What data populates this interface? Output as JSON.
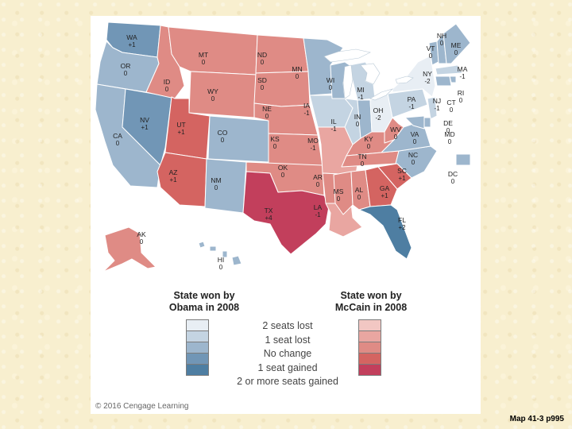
{
  "map": {
    "legend": {
      "obama_title": "State won by\nObama in 2008",
      "mccain_title": "State won by\nMcCain in 2008",
      "levels": [
        {
          "label": "2 seats lost",
          "obama_color": "#e8eef4",
          "mccain_color": "#f2c7c3"
        },
        {
          "label": "1 seat lost",
          "obama_color": "#c4d4e2",
          "mccain_color": "#e9a6a1"
        },
        {
          "label": "No change",
          "obama_color": "#9db6cd",
          "mccain_color": "#df8b85"
        },
        {
          "label": "1 seat gained",
          "obama_color": "#7196b6",
          "mccain_color": "#d46461"
        },
        {
          "label": "2 or more seats gained",
          "obama_color": "#4e7ea2",
          "mccain_color": "#c23f5c"
        }
      ]
    },
    "states": [
      {
        "abbr": "WA",
        "change": "+1",
        "winner": "obama",
        "level": 3
      },
      {
        "abbr": "OR",
        "change": "0",
        "winner": "obama",
        "level": 2
      },
      {
        "abbr": "CA",
        "change": "0",
        "winner": "obama",
        "level": 2
      },
      {
        "abbr": "NV",
        "change": "+1",
        "winner": "obama",
        "level": 3
      },
      {
        "abbr": "ID",
        "change": "0",
        "winner": "mccain",
        "level": 2
      },
      {
        "abbr": "MT",
        "change": "0",
        "winner": "mccain",
        "level": 2
      },
      {
        "abbr": "WY",
        "change": "0",
        "winner": "mccain",
        "level": 2
      },
      {
        "abbr": "UT",
        "change": "+1",
        "winner": "mccain",
        "level": 3
      },
      {
        "abbr": "AZ",
        "change": "+1",
        "winner": "mccain",
        "level": 3
      },
      {
        "abbr": "CO",
        "change": "0",
        "winner": "obama",
        "level": 2
      },
      {
        "abbr": "NM",
        "change": "0",
        "winner": "obama",
        "level": 2
      },
      {
        "abbr": "ND",
        "change": "0",
        "winner": "mccain",
        "level": 2
      },
      {
        "abbr": "SD",
        "change": "0",
        "winner": "mccain",
        "level": 2
      },
      {
        "abbr": "NE",
        "change": "0",
        "winner": "mccain",
        "level": 2
      },
      {
        "abbr": "KS",
        "change": "0",
        "winner": "mccain",
        "level": 2
      },
      {
        "abbr": "OK",
        "change": "0",
        "winner": "mccain",
        "level": 2
      },
      {
        "abbr": "TX",
        "change": "+4",
        "winner": "mccain",
        "level": 4
      },
      {
        "abbr": "MN",
        "change": "0",
        "winner": "obama",
        "level": 2
      },
      {
        "abbr": "IA",
        "change": "-1",
        "winner": "obama",
        "level": 1
      },
      {
        "abbr": "MO",
        "change": "-1",
        "winner": "mccain",
        "level": 1
      },
      {
        "abbr": "AR",
        "change": "0",
        "winner": "mccain",
        "level": 2
      },
      {
        "abbr": "LA",
        "change": "-1",
        "winner": "mccain",
        "level": 1
      },
      {
        "abbr": "WI",
        "change": "0",
        "winner": "obama",
        "level": 2
      },
      {
        "abbr": "IL",
        "change": "-1",
        "winner": "obama",
        "level": 1
      },
      {
        "abbr": "MI",
        "change": "-1",
        "winner": "obama",
        "level": 1
      },
      {
        "abbr": "IN",
        "change": "0",
        "winner": "obama",
        "level": 2
      },
      {
        "abbr": "OH",
        "change": "-2",
        "winner": "obama",
        "level": 0
      },
      {
        "abbr": "KY",
        "change": "0",
        "winner": "mccain",
        "level": 2
      },
      {
        "abbr": "TN",
        "change": "0",
        "winner": "mccain",
        "level": 2
      },
      {
        "abbr": "MS",
        "change": "0",
        "winner": "mccain",
        "level": 2
      },
      {
        "abbr": "AL",
        "change": "0",
        "winner": "mccain",
        "level": 2
      },
      {
        "abbr": "GA",
        "change": "+1",
        "winner": "mccain",
        "level": 3
      },
      {
        "abbr": "FL",
        "change": "+2",
        "winner": "obama",
        "level": 4
      },
      {
        "abbr": "SC",
        "change": "+1",
        "winner": "mccain",
        "level": 3
      },
      {
        "abbr": "NC",
        "change": "0",
        "winner": "obama",
        "level": 2
      },
      {
        "abbr": "VA",
        "change": "0",
        "winner": "obama",
        "level": 2
      },
      {
        "abbr": "WV",
        "change": "0",
        "winner": "mccain",
        "level": 2
      },
      {
        "abbr": "PA",
        "change": "-1",
        "winner": "obama",
        "level": 1
      },
      {
        "abbr": "NY",
        "change": "-2",
        "winner": "obama",
        "level": 0
      },
      {
        "abbr": "VT",
        "change": "0",
        "winner": "obama",
        "level": 2
      },
      {
        "abbr": "NH",
        "change": "0",
        "winner": "obama",
        "level": 2
      },
      {
        "abbr": "ME",
        "change": "0",
        "winner": "obama",
        "level": 2
      },
      {
        "abbr": "MA",
        "change": "-1",
        "winner": "obama",
        "level": 1
      },
      {
        "abbr": "RI",
        "change": "0",
        "winner": "obama",
        "level": 2
      },
      {
        "abbr": "CT",
        "change": "0",
        "winner": "obama",
        "level": 2
      },
      {
        "abbr": "NJ",
        "change": "-1",
        "winner": "obama",
        "level": 1
      },
      {
        "abbr": "DE",
        "change": "0",
        "winner": "obama",
        "level": 2
      },
      {
        "abbr": "MD",
        "change": "0",
        "winner": "obama",
        "level": 2
      },
      {
        "abbr": "DC",
        "change": "0",
        "winner": "obama",
        "level": 2
      },
      {
        "abbr": "AK",
        "change": "0",
        "winner": "mccain",
        "level": 2
      },
      {
        "abbr": "HI",
        "change": "0",
        "winner": "obama",
        "level": 2
      }
    ]
  },
  "copyright": "© 2016 Cengage Learning",
  "caption": "Map 41-3 p995"
}
